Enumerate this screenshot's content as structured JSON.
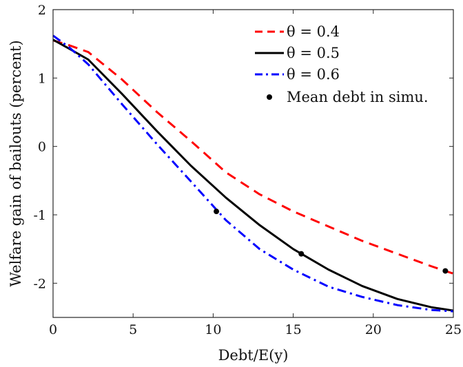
{
  "chart_data": {
    "type": "line",
    "title": "",
    "xlabel": "Debt/E(y)",
    "ylabel": "Welfare gain of bailouts (percent)",
    "xlim": [
      0,
      25
    ],
    "ylim": [
      -2.5,
      2
    ],
    "x_ticks": [
      "0",
      "5",
      "10",
      "15",
      "20",
      "25"
    ],
    "y_ticks": [
      "2",
      "1",
      "0",
      "-1",
      "-2"
    ],
    "legend_position": "top-right",
    "grid": false,
    "series": [
      {
        "name": "θ = 0.4",
        "color": "#ff0000",
        "style": "dashed",
        "x": [
          0,
          1,
          2.2,
          4.3,
          6.5,
          8.6,
          10.8,
          12.9,
          15.0,
          17.2,
          19.3,
          21.5,
          23.6,
          25
        ],
        "y": [
          1.55,
          1.48,
          1.38,
          0.98,
          0.5,
          0.08,
          -0.38,
          -0.7,
          -0.95,
          -1.17,
          -1.38,
          -1.57,
          -1.75,
          -1.86
        ]
      },
      {
        "name": "θ = 0.5",
        "color": "#000000",
        "style": "solid",
        "x": [
          0,
          1,
          2.2,
          4.3,
          6.5,
          8.6,
          10.8,
          12.9,
          15.0,
          17.2,
          19.3,
          21.5,
          23.6,
          25
        ],
        "y": [
          1.56,
          1.43,
          1.27,
          0.77,
          0.22,
          -0.28,
          -0.75,
          -1.15,
          -1.5,
          -1.8,
          -2.04,
          -2.23,
          -2.35,
          -2.4
        ]
      },
      {
        "name": "θ = 0.6",
        "color": "#0000ff",
        "style": "dashdot",
        "x": [
          0,
          1,
          2.2,
          4.3,
          6.5,
          8.6,
          10.8,
          12.9,
          15.0,
          17.2,
          19.3,
          21.5,
          23.6,
          25
        ],
        "y": [
          1.62,
          1.45,
          1.2,
          0.62,
          0.03,
          -0.51,
          -1.08,
          -1.5,
          -1.8,
          -2.05,
          -2.2,
          -2.32,
          -2.39,
          -2.41
        ]
      }
    ],
    "markers": {
      "name": "Mean debt in simu.",
      "color": "#000000",
      "points": [
        {
          "x": 10.2,
          "y": -0.95
        },
        {
          "x": 15.5,
          "y": -1.57
        },
        {
          "x": 24.5,
          "y": -1.82
        }
      ]
    }
  }
}
